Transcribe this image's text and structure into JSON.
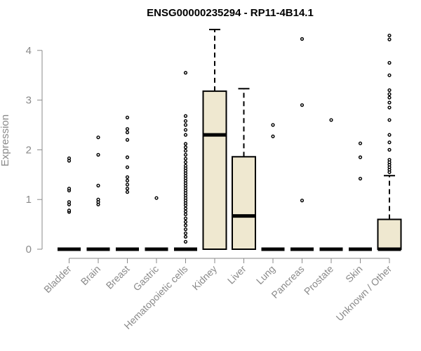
{
  "chart_data": {
    "type": "boxplot",
    "title": "ENSG00000235294 - RP11-4B14.1",
    "xlabel": "",
    "ylabel": "Expression",
    "ylim": [
      0,
      4.45
    ],
    "yticks": [
      0,
      1,
      2,
      3,
      4
    ],
    "box_fill": "#efe8d0",
    "categories": [
      "Bladder",
      "Brain",
      "Breast",
      "Gastric",
      "Hematopoietic cells",
      "Kidney",
      "Liver",
      "Lung",
      "Pancreas",
      "Prostate",
      "Skin",
      "Unknown / Other"
    ],
    "boxes": [
      {
        "category": "Bladder",
        "q1": 0,
        "median": 0,
        "q3": 0,
        "whisker_low": 0,
        "whisker_high": 0,
        "outliers": [
          0.75,
          0.78,
          0.9,
          0.95,
          1.18,
          1.22,
          1.78,
          1.83
        ]
      },
      {
        "category": "Brain",
        "q1": 0,
        "median": 0,
        "q3": 0,
        "whisker_low": 0,
        "whisker_high": 0,
        "outliers": [
          0.9,
          0.95,
          1.0,
          1.28,
          1.9,
          2.25
        ]
      },
      {
        "category": "Breast",
        "q1": 0,
        "median": 0,
        "q3": 0,
        "whisker_low": 0,
        "whisker_high": 0,
        "outliers": [
          1.15,
          1.22,
          1.3,
          1.38,
          1.45,
          1.65,
          1.85,
          2.2,
          2.35,
          2.42,
          2.65
        ]
      },
      {
        "category": "Gastric",
        "q1": 0,
        "median": 0,
        "q3": 0,
        "whisker_low": 0,
        "whisker_high": 0,
        "outliers": [
          1.03
        ]
      },
      {
        "category": "Hematopoietic cells",
        "q1": 0,
        "median": 0,
        "q3": 0,
        "whisker_low": 0,
        "whisker_high": 0,
        "outliers": [
          0.15,
          0.25,
          0.32,
          0.4,
          0.48,
          0.55,
          0.62,
          0.7,
          0.76,
          0.82,
          0.88,
          0.93,
          0.98,
          1.03,
          1.08,
          1.13,
          1.18,
          1.23,
          1.28,
          1.33,
          1.38,
          1.43,
          1.48,
          1.53,
          1.58,
          1.63,
          1.68,
          1.75,
          1.82,
          1.9,
          1.98,
          2.05,
          2.12,
          2.3,
          2.4,
          2.5,
          2.58,
          2.68,
          3.55
        ]
      },
      {
        "category": "Kidney",
        "q1": 0,
        "median": 2.3,
        "q3": 3.18,
        "whisker_low": 0,
        "whisker_high": 4.42,
        "outliers": []
      },
      {
        "category": "Liver",
        "q1": 0,
        "median": 0.67,
        "q3": 1.86,
        "whisker_low": 0,
        "whisker_high": 3.23,
        "outliers": []
      },
      {
        "category": "Lung",
        "q1": 0,
        "median": 0,
        "q3": 0,
        "whisker_low": 0,
        "whisker_high": 0,
        "outliers": [
          2.27,
          2.5
        ]
      },
      {
        "category": "Pancreas",
        "q1": 0,
        "median": 0,
        "q3": 0,
        "whisker_low": 0,
        "whisker_high": 0,
        "outliers": [
          0.98,
          2.9,
          4.23
        ]
      },
      {
        "category": "Prostate",
        "q1": 0,
        "median": 0,
        "q3": 0,
        "whisker_low": 0,
        "whisker_high": 0,
        "outliers": [
          2.6
        ]
      },
      {
        "category": "Skin",
        "q1": 0,
        "median": 0,
        "q3": 0,
        "whisker_low": 0,
        "whisker_high": 0,
        "outliers": [
          1.42,
          1.85,
          2.13
        ]
      },
      {
        "category": "Unknown / Other",
        "q1": 0,
        "median": 0,
        "q3": 0.6,
        "whisker_low": 0,
        "whisker_high": 1.48,
        "outliers": [
          1.55,
          1.6,
          1.65,
          1.7,
          1.75,
          1.8,
          2.0,
          2.15,
          2.3,
          2.6,
          2.85,
          2.95,
          3.05,
          3.12,
          3.2,
          3.5,
          3.75,
          4.22,
          4.3
        ]
      }
    ]
  }
}
